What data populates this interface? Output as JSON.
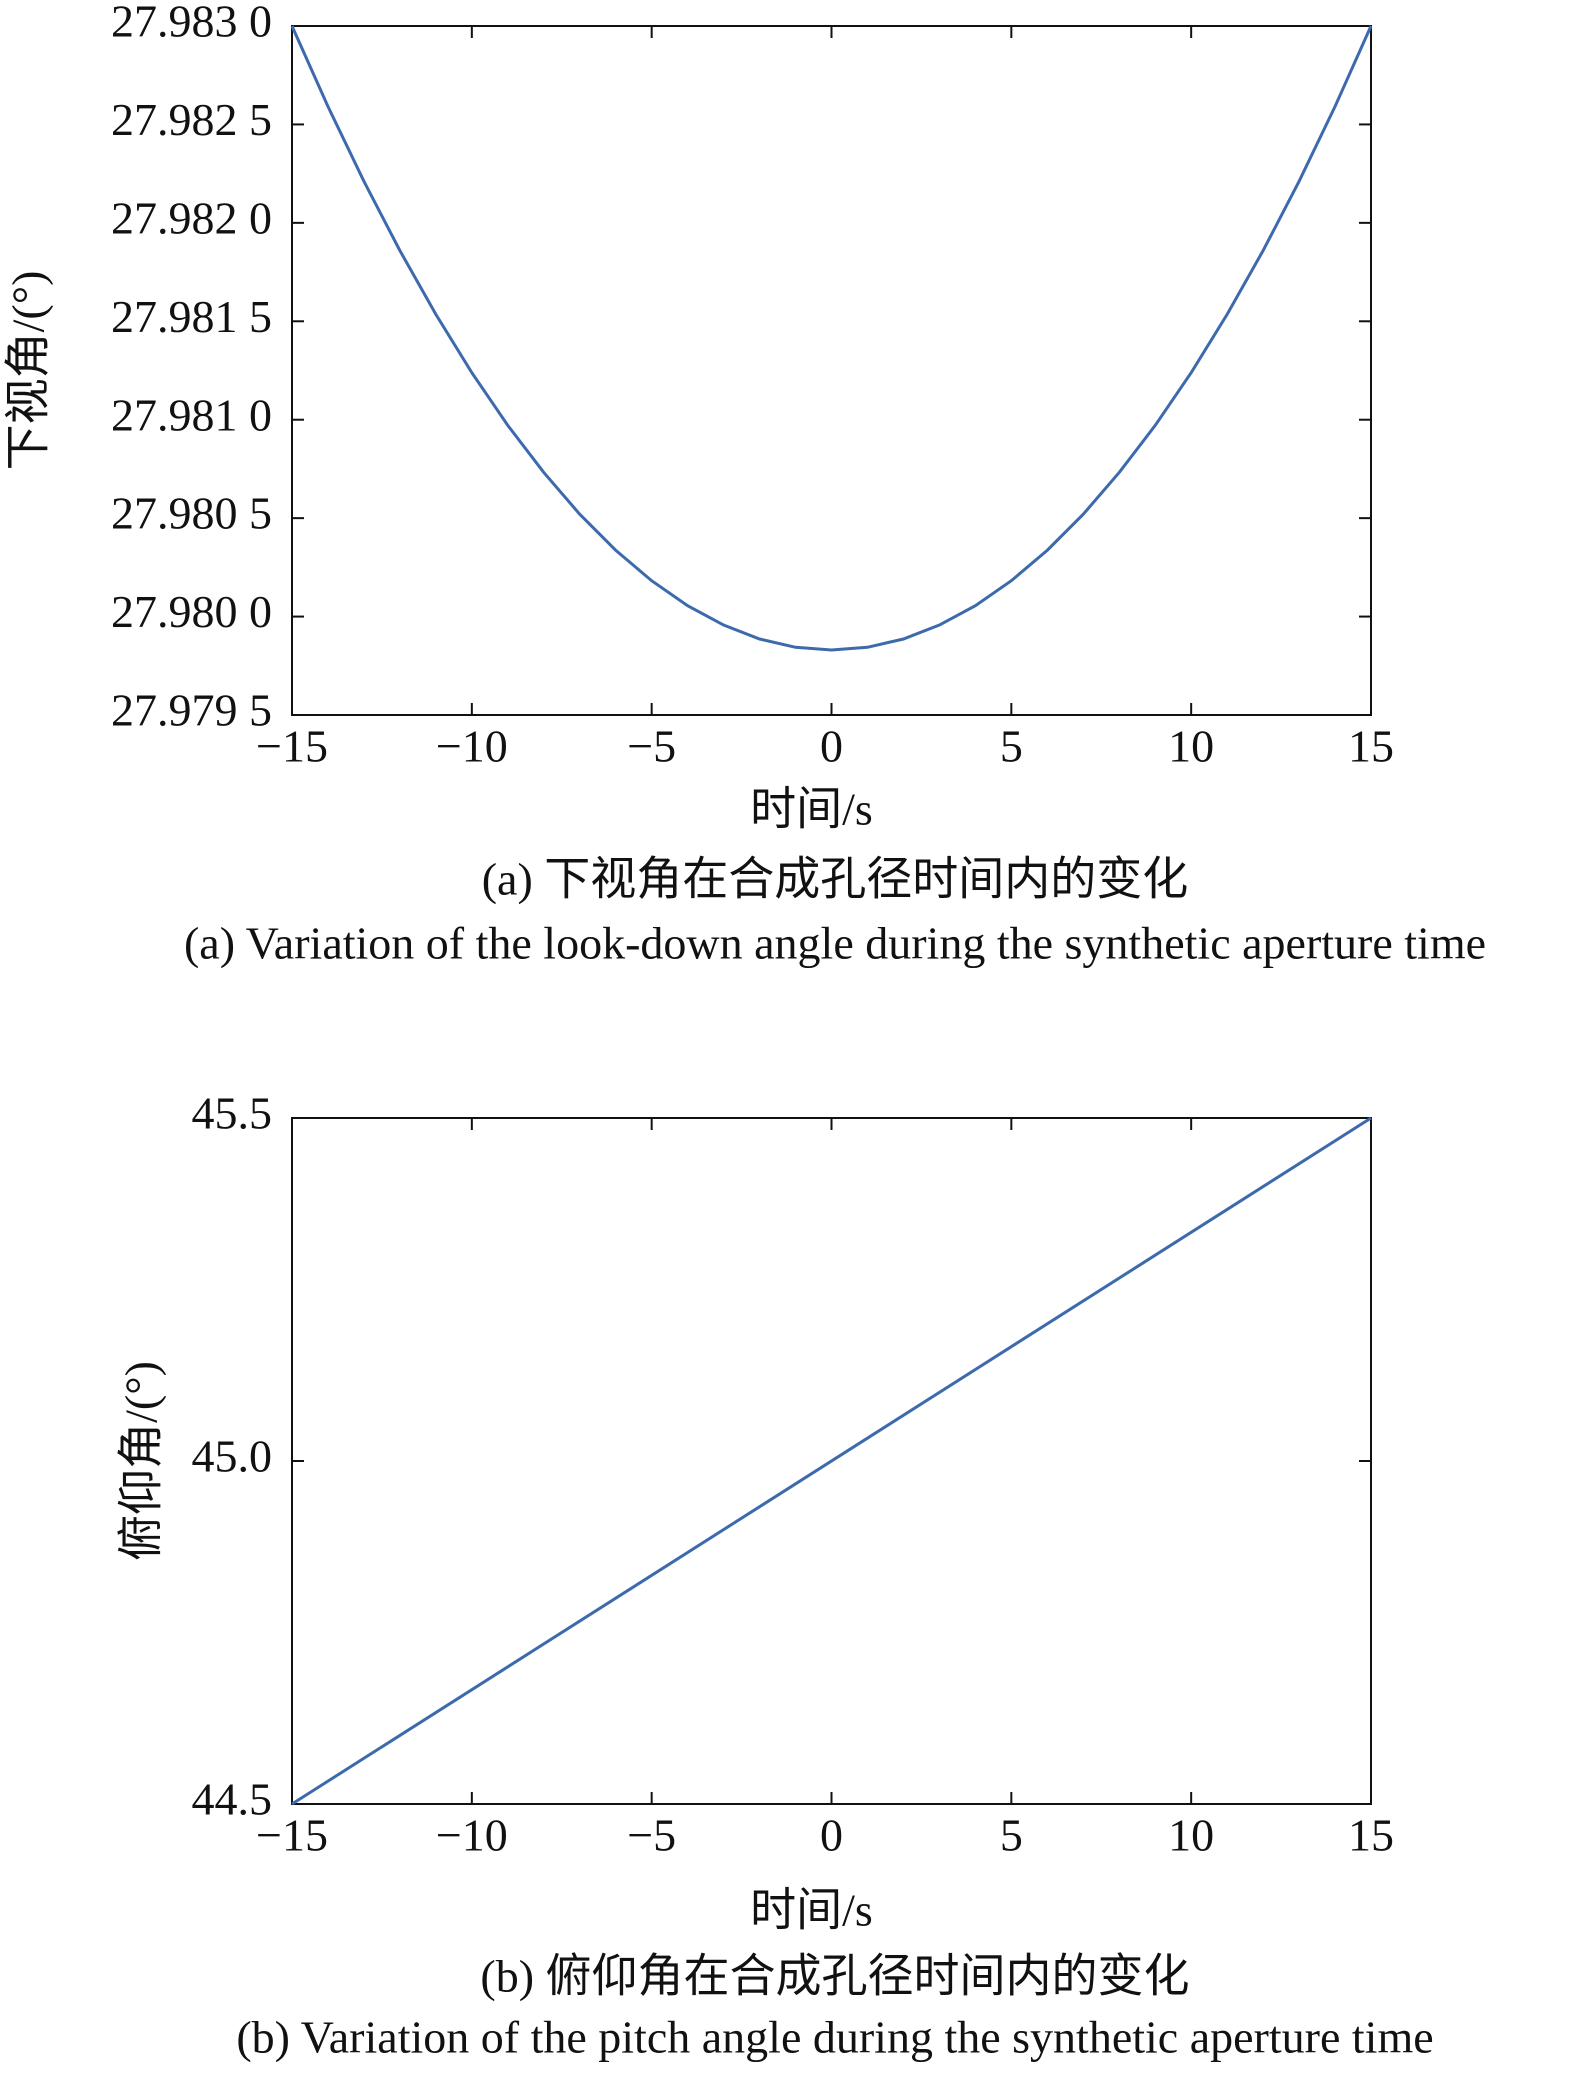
{
  "chart_data": [
    {
      "type": "line",
      "title": "(a) 下视角在合成孔径时间内的变化",
      "subtitle": "(a) Variation of the look-down angle during the synthetic aperture time",
      "xlabel": "时间/s",
      "ylabel": "下视角/(°)",
      "x": [
        -15,
        -14,
        -13,
        -12,
        -11,
        -10,
        -9,
        -8,
        -7,
        -6,
        -5,
        -4,
        -3,
        -2,
        -1,
        0,
        1,
        2,
        3,
        4,
        5,
        6,
        7,
        8,
        9,
        10,
        11,
        12,
        13,
        14,
        15
      ],
      "values": [
        27.983,
        27.982591,
        27.982211,
        27.981859,
        27.981535,
        27.981239,
        27.980971,
        27.980732,
        27.98052,
        27.980337,
        27.980182,
        27.980055,
        27.979957,
        27.979886,
        27.979844,
        27.97983,
        27.979844,
        27.979886,
        27.979957,
        27.980055,
        27.980182,
        27.980337,
        27.98052,
        27.980732,
        27.980971,
        27.981239,
        27.981535,
        27.981859,
        27.982211,
        27.982591,
        27.983
      ],
      "color": "#3c6aad",
      "xlim": [
        -15,
        15
      ],
      "xticks": [
        {
          "value": -15,
          "label": "−15"
        },
        {
          "value": -10,
          "label": "−10"
        },
        {
          "value": -5,
          "label": "−5"
        },
        0,
        5,
        10,
        15
      ],
      "ylim": [
        27.9795,
        27.983
      ],
      "yticks": [
        {
          "value": 27.9795,
          "label": "27.979 5"
        },
        {
          "value": 27.98,
          "label": "27.980 0"
        },
        {
          "value": 27.9805,
          "label": "27.980 5"
        },
        {
          "value": 27.981,
          "label": "27.981 0"
        },
        {
          "value": 27.9815,
          "label": "27.981 5"
        },
        {
          "value": 27.982,
          "label": "27.982 0"
        },
        {
          "value": 27.9825,
          "label": "27.982 5"
        },
        {
          "value": 27.983,
          "label": "27.983 0"
        }
      ]
    },
    {
      "type": "line",
      "title": "(b) 俯仰角在合成孔径时间内的变化",
      "subtitle": "(b) Variation of the pitch angle during the synthetic aperture time",
      "xlabel": "时间/s",
      "ylabel": "俯仰角/(°)",
      "x": [
        -15,
        15
      ],
      "values": [
        44.5,
        45.5
      ],
      "color": "#3c6aad",
      "xlim": [
        -15,
        15
      ],
      "xticks": [
        {
          "value": -15,
          "label": "−15"
        },
        {
          "value": -10,
          "label": "−10"
        },
        {
          "value": -5,
          "label": "−5"
        },
        0,
        5,
        10,
        15
      ],
      "ylim": [
        44.5,
        45.5
      ],
      "yticks": [
        44.5,
        {
          "value": 45,
          "label": "45.0"
        },
        45.5
      ]
    }
  ]
}
